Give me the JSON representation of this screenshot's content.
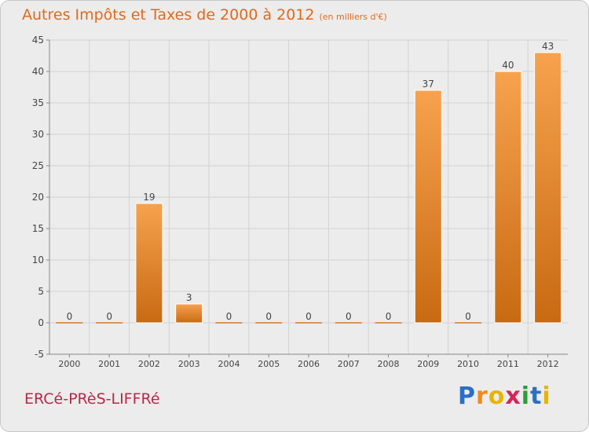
{
  "header": {
    "title": "Autres Impôts et Taxes de 2000 à 2012",
    "unit": "(en milliers d'€)"
  },
  "footer": {
    "commune": "ERCé-PRèS-LIFFRé",
    "logo_letters": [
      "P",
      "r",
      "o",
      "x",
      "i",
      "t",
      "i"
    ],
    "logo_colors": [
      "#2a6fc4",
      "#f08a1c",
      "#e8b400",
      "#d6245b",
      "#2a9d3a",
      "#2a6fc4",
      "#e8b400"
    ]
  },
  "colors": {
    "bar_top": "#f7a24e",
    "bar_bottom": "#c86a12",
    "bar_zero": "#d9761e",
    "grid": "#d2d2d2",
    "axis": "#888888",
    "label": "#444444"
  },
  "chart_data": {
    "type": "bar",
    "title": "Autres Impôts et Taxes de 2000 à 2012",
    "subtitle": "(en milliers d'€)",
    "categories": [
      "2000",
      "2001",
      "2002",
      "2003",
      "2004",
      "2005",
      "2006",
      "2007",
      "2008",
      "2009",
      "2010",
      "2011",
      "2012"
    ],
    "values": [
      0,
      0,
      19,
      3,
      0,
      0,
      0,
      0,
      0,
      37,
      0,
      40,
      43
    ],
    "ylim": [
      -5,
      45
    ],
    "yticks": [
      -5,
      0,
      5,
      10,
      15,
      20,
      25,
      30,
      35,
      40,
      45
    ],
    "xlabel": "",
    "ylabel": "",
    "grid": true,
    "legend": "none"
  }
}
